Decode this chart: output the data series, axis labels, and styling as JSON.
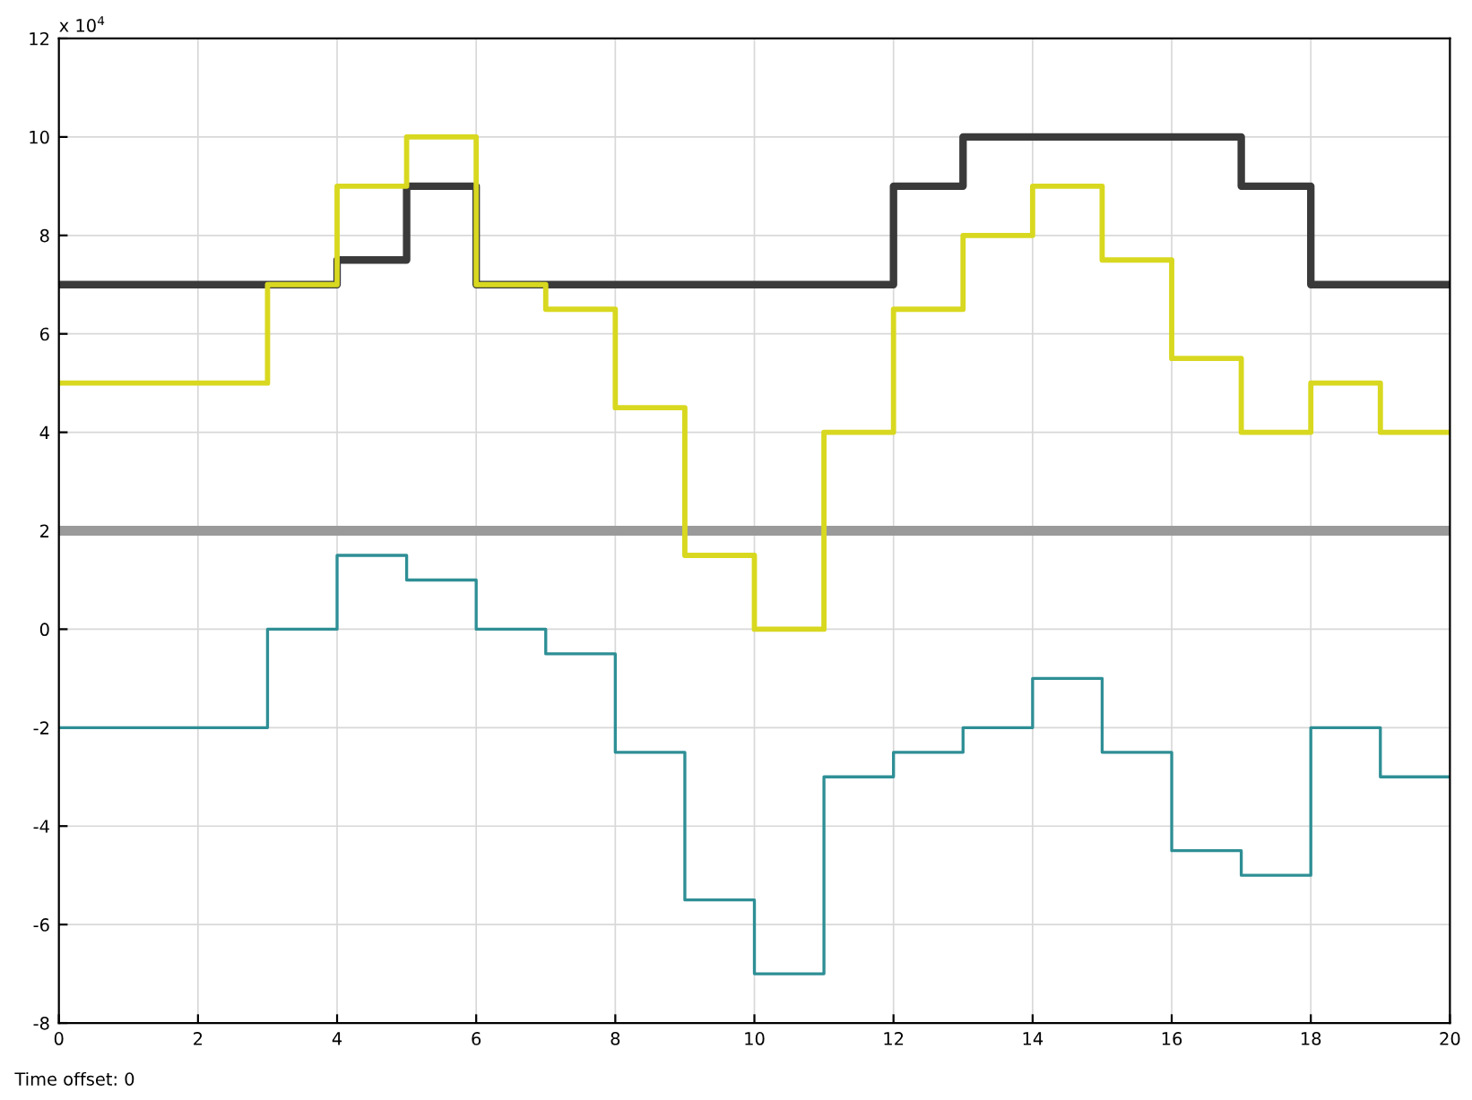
{
  "chart_data": {
    "type": "step",
    "x": [
      0,
      1,
      2,
      3,
      4,
      5,
      6,
      7,
      8,
      9,
      10,
      11,
      12,
      13,
      14,
      15,
      16,
      17,
      18,
      19,
      20
    ],
    "series": [
      {
        "color": "#9a9a9a",
        "values": [
          2,
          2,
          2,
          2,
          2,
          2,
          2,
          2,
          2,
          2,
          2,
          2,
          2,
          2,
          2,
          2,
          2,
          2,
          2,
          2,
          2
        ]
      },
      {
        "color": "#3a3a3a",
        "values": [
          7,
          7,
          7,
          7,
          7.5,
          9,
          7,
          7,
          7,
          7,
          7,
          7,
          9,
          10,
          10,
          10,
          10,
          9,
          7,
          7,
          7
        ]
      },
      {
        "color": "#d8d820",
        "values": [
          5,
          5,
          5,
          7,
          9,
          10,
          7,
          6.5,
          4.5,
          1.5,
          0,
          4,
          6.5,
          8,
          9,
          7.5,
          5.5,
          4,
          5,
          4,
          4
        ]
      },
      {
        "color": "#2e8f95",
        "values": [
          -2,
          -2,
          -2,
          0,
          1.5,
          1,
          0,
          -0.5,
          -2.5,
          -5.5,
          -7,
          -3,
          -2.5,
          -2,
          -1,
          -2.5,
          -4.5,
          -5,
          -2,
          -3,
          -3
        ]
      }
    ],
    "xlim": [
      0,
      20
    ],
    "xticks": [
      0,
      2,
      4,
      6,
      8,
      10,
      12,
      14,
      16,
      18,
      20
    ],
    "ylim": [
      -8,
      12
    ],
    "yticks": [
      -8,
      -6,
      -4,
      -2,
      0,
      2,
      4,
      6,
      8,
      10,
      12
    ],
    "grid": true,
    "legend": false,
    "annotations": [
      "x 10$^{4}$",
      "Time offset: 0"
    ]
  }
}
